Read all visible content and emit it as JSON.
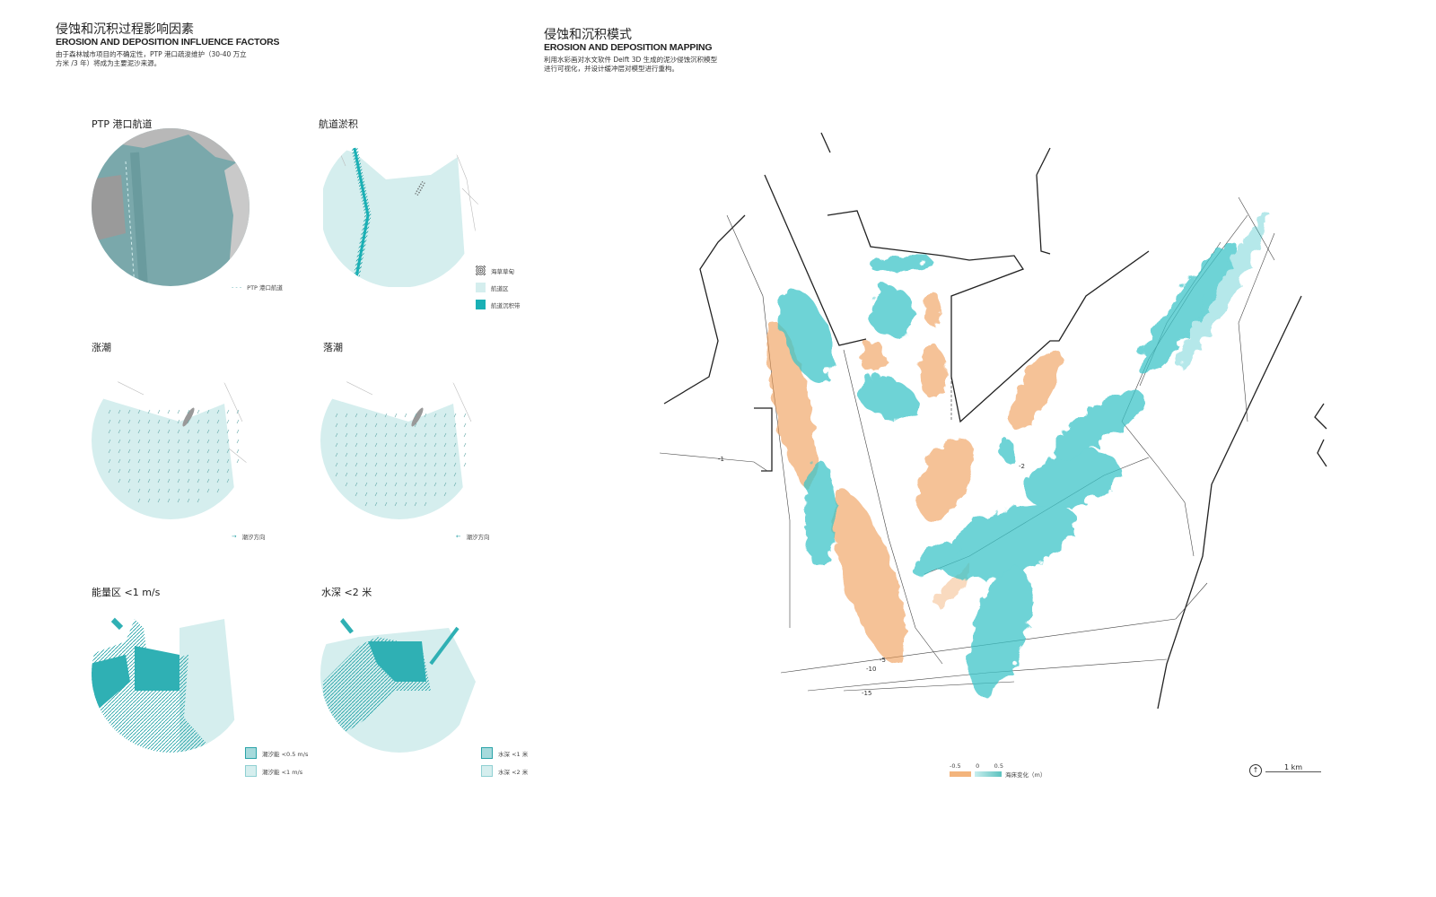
{
  "left": {
    "title_cn": "侵蚀和沉积过程影响因素",
    "title_en": "EROSION AND DEPOSITION INFLUENCE FACTORS",
    "desc_1": "由于森林城市项目的不确定性，PTP 港口疏浚维护（30-40 万立",
    "desc_2": "方米 /3 年）将成为主要泥沙来源。",
    "panels": [
      {
        "label": "PTP 港口航道",
        "legend": [
          "PTP 港口航道"
        ]
      },
      {
        "label": "航道淤积",
        "legend": [
          "海草草甸",
          "航道区",
          "航道沉积带"
        ]
      },
      {
        "label": "涨潮",
        "legend": [
          "潮汐方向"
        ]
      },
      {
        "label": "落潮",
        "legend": [
          "潮汐方向"
        ]
      },
      {
        "label": "能量区 <1 m/s",
        "legend": [
          "潮汐能 <0.5 m/s",
          "潮汐能 <1 m/s"
        ]
      },
      {
        "label": "水深 <2 米",
        "legend": [
          "水深 <1 米",
          "水深 <2 米"
        ]
      }
    ]
  },
  "right": {
    "title_cn": "侵蚀和沉积模式",
    "title_en": "EROSION AND DEPOSITION MAPPING",
    "desc_1": "利用水彩画对水文软件 Delft 3D 生成的泥沙侵蚀沉积模型",
    "desc_2": "进行可视化，并设计缓冲层对模型进行重构。",
    "contour_labels": [
      "-1",
      "-2",
      "-5",
      "-10",
      "-15"
    ],
    "legend": {
      "min": "-0.5",
      "mid": "0",
      "max": "0.5",
      "label": "海床变化（m）"
    },
    "scale": "1 km"
  },
  "colors": {
    "teal": "#3cc4c8",
    "teal_dark": "#2aa3a8",
    "light_teal": "#d5eeee",
    "orange": "#ef9a52",
    "map_grey": "#7a9a9c"
  }
}
